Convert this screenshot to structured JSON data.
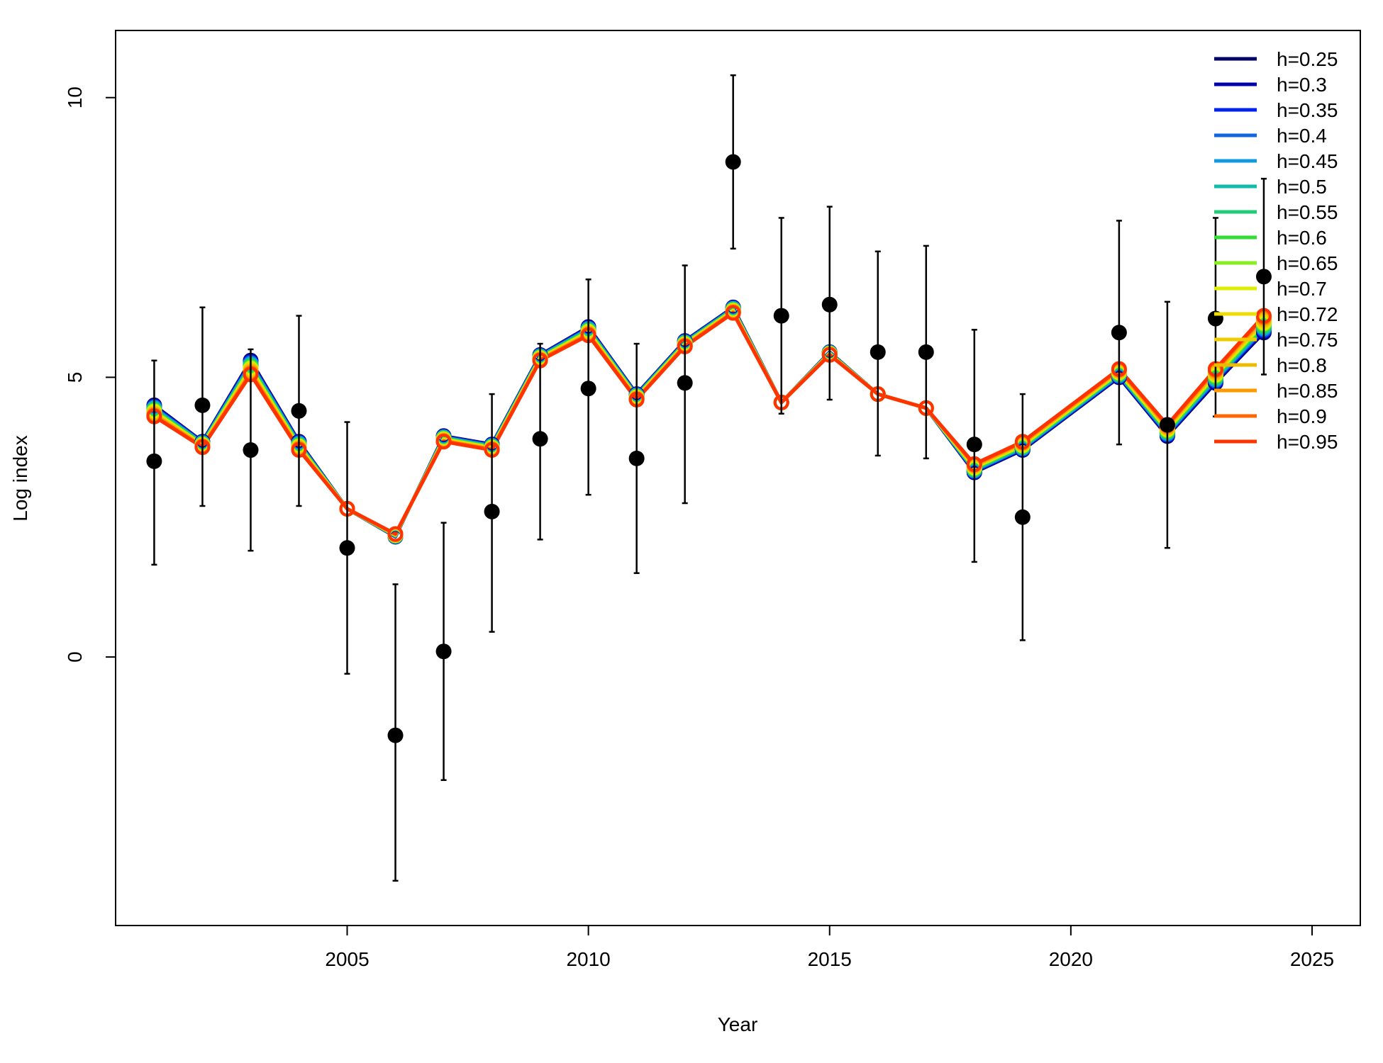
{
  "chart_data": {
    "type": "line",
    "title": "",
    "xlabel": "Year",
    "ylabel": "Log index",
    "xlim": [
      2000.2,
      2026.0
    ],
    "ylim": [
      -4.8,
      11.2
    ],
    "x_ticks": [
      2005,
      2010,
      2015,
      2020,
      2025
    ],
    "y_ticks": [
      0,
      5,
      10
    ],
    "legend_position": "top-right",
    "grid": false,
    "observed": {
      "years": [
        2001,
        2002,
        2003,
        2004,
        2005,
        2006,
        2007,
        2008,
        2009,
        2010,
        2011,
        2012,
        2013,
        2014,
        2015,
        2016,
        2017,
        2018,
        2019,
        2021,
        2022,
        2023,
        2024
      ],
      "values": [
        3.5,
        4.5,
        3.7,
        4.4,
        1.95,
        -1.4,
        0.1,
        2.6,
        3.9,
        4.8,
        3.55,
        4.9,
        8.85,
        6.1,
        6.3,
        5.45,
        5.45,
        3.8,
        2.5,
        5.8,
        4.15,
        6.05,
        6.8
      ],
      "lower": [
        1.65,
        2.7,
        1.9,
        2.7,
        -0.3,
        -4.0,
        -2.2,
        0.45,
        2.1,
        2.9,
        1.5,
        2.75,
        7.3,
        4.35,
        4.6,
        3.6,
        3.55,
        1.7,
        0.3,
        3.8,
        1.95,
        4.3,
        5.05
      ],
      "upper": [
        5.3,
        6.25,
        5.5,
        6.1,
        4.2,
        1.3,
        2.4,
        4.7,
        5.6,
        6.75,
        5.6,
        7.0,
        10.4,
        7.85,
        8.05,
        7.25,
        7.35,
        5.85,
        4.7,
        7.8,
        6.35,
        7.85,
        8.55
      ]
    },
    "fit_years": [
      2001,
      2002,
      2003,
      2004,
      2005,
      2006,
      2007,
      2008,
      2009,
      2010,
      2011,
      2012,
      2013,
      2014,
      2015,
      2016,
      2017,
      2018,
      2019,
      2021,
      2022,
      2023,
      2024
    ],
    "fit_low": [
      4.5,
      3.85,
      5.3,
      3.85,
      2.65,
      2.15,
      3.95,
      3.8,
      5.4,
      5.9,
      4.7,
      5.65,
      6.25,
      4.55,
      5.45,
      4.7,
      4.45,
      3.3,
      3.7,
      5.0,
      3.95,
      4.9,
      5.8
    ],
    "fit_high": [
      4.3,
      3.75,
      5.05,
      3.7,
      2.65,
      2.2,
      3.85,
      3.7,
      5.3,
      5.75,
      4.6,
      5.55,
      6.15,
      4.55,
      5.4,
      4.7,
      4.45,
      3.45,
      3.85,
      5.15,
      4.15,
      5.15,
      6.1
    ],
    "series": [
      {
        "name": "h=0.25",
        "color": "#000066"
      },
      {
        "name": "h=0.3",
        "color": "#0000aa"
      },
      {
        "name": "h=0.35",
        "color": "#0022ee"
      },
      {
        "name": "h=0.4",
        "color": "#1166dd"
      },
      {
        "name": "h=0.45",
        "color": "#1199dd"
      },
      {
        "name": "h=0.5",
        "color": "#11bbaa"
      },
      {
        "name": "h=0.55",
        "color": "#22cc77"
      },
      {
        "name": "h=0.6",
        "color": "#33dd33"
      },
      {
        "name": "h=0.65",
        "color": "#88ee22"
      },
      {
        "name": "h=0.7",
        "color": "#ddee00"
      },
      {
        "name": "h=0.72",
        "color": "#eedd00"
      },
      {
        "name": "h=0.75",
        "color": "#eecc00"
      },
      {
        "name": "h=0.8",
        "color": "#eebb00"
      },
      {
        "name": "h=0.85",
        "color": "#ff9900"
      },
      {
        "name": "h=0.9",
        "color": "#ff6600"
      },
      {
        "name": "h=0.95",
        "color": "#ff3300"
      }
    ]
  }
}
